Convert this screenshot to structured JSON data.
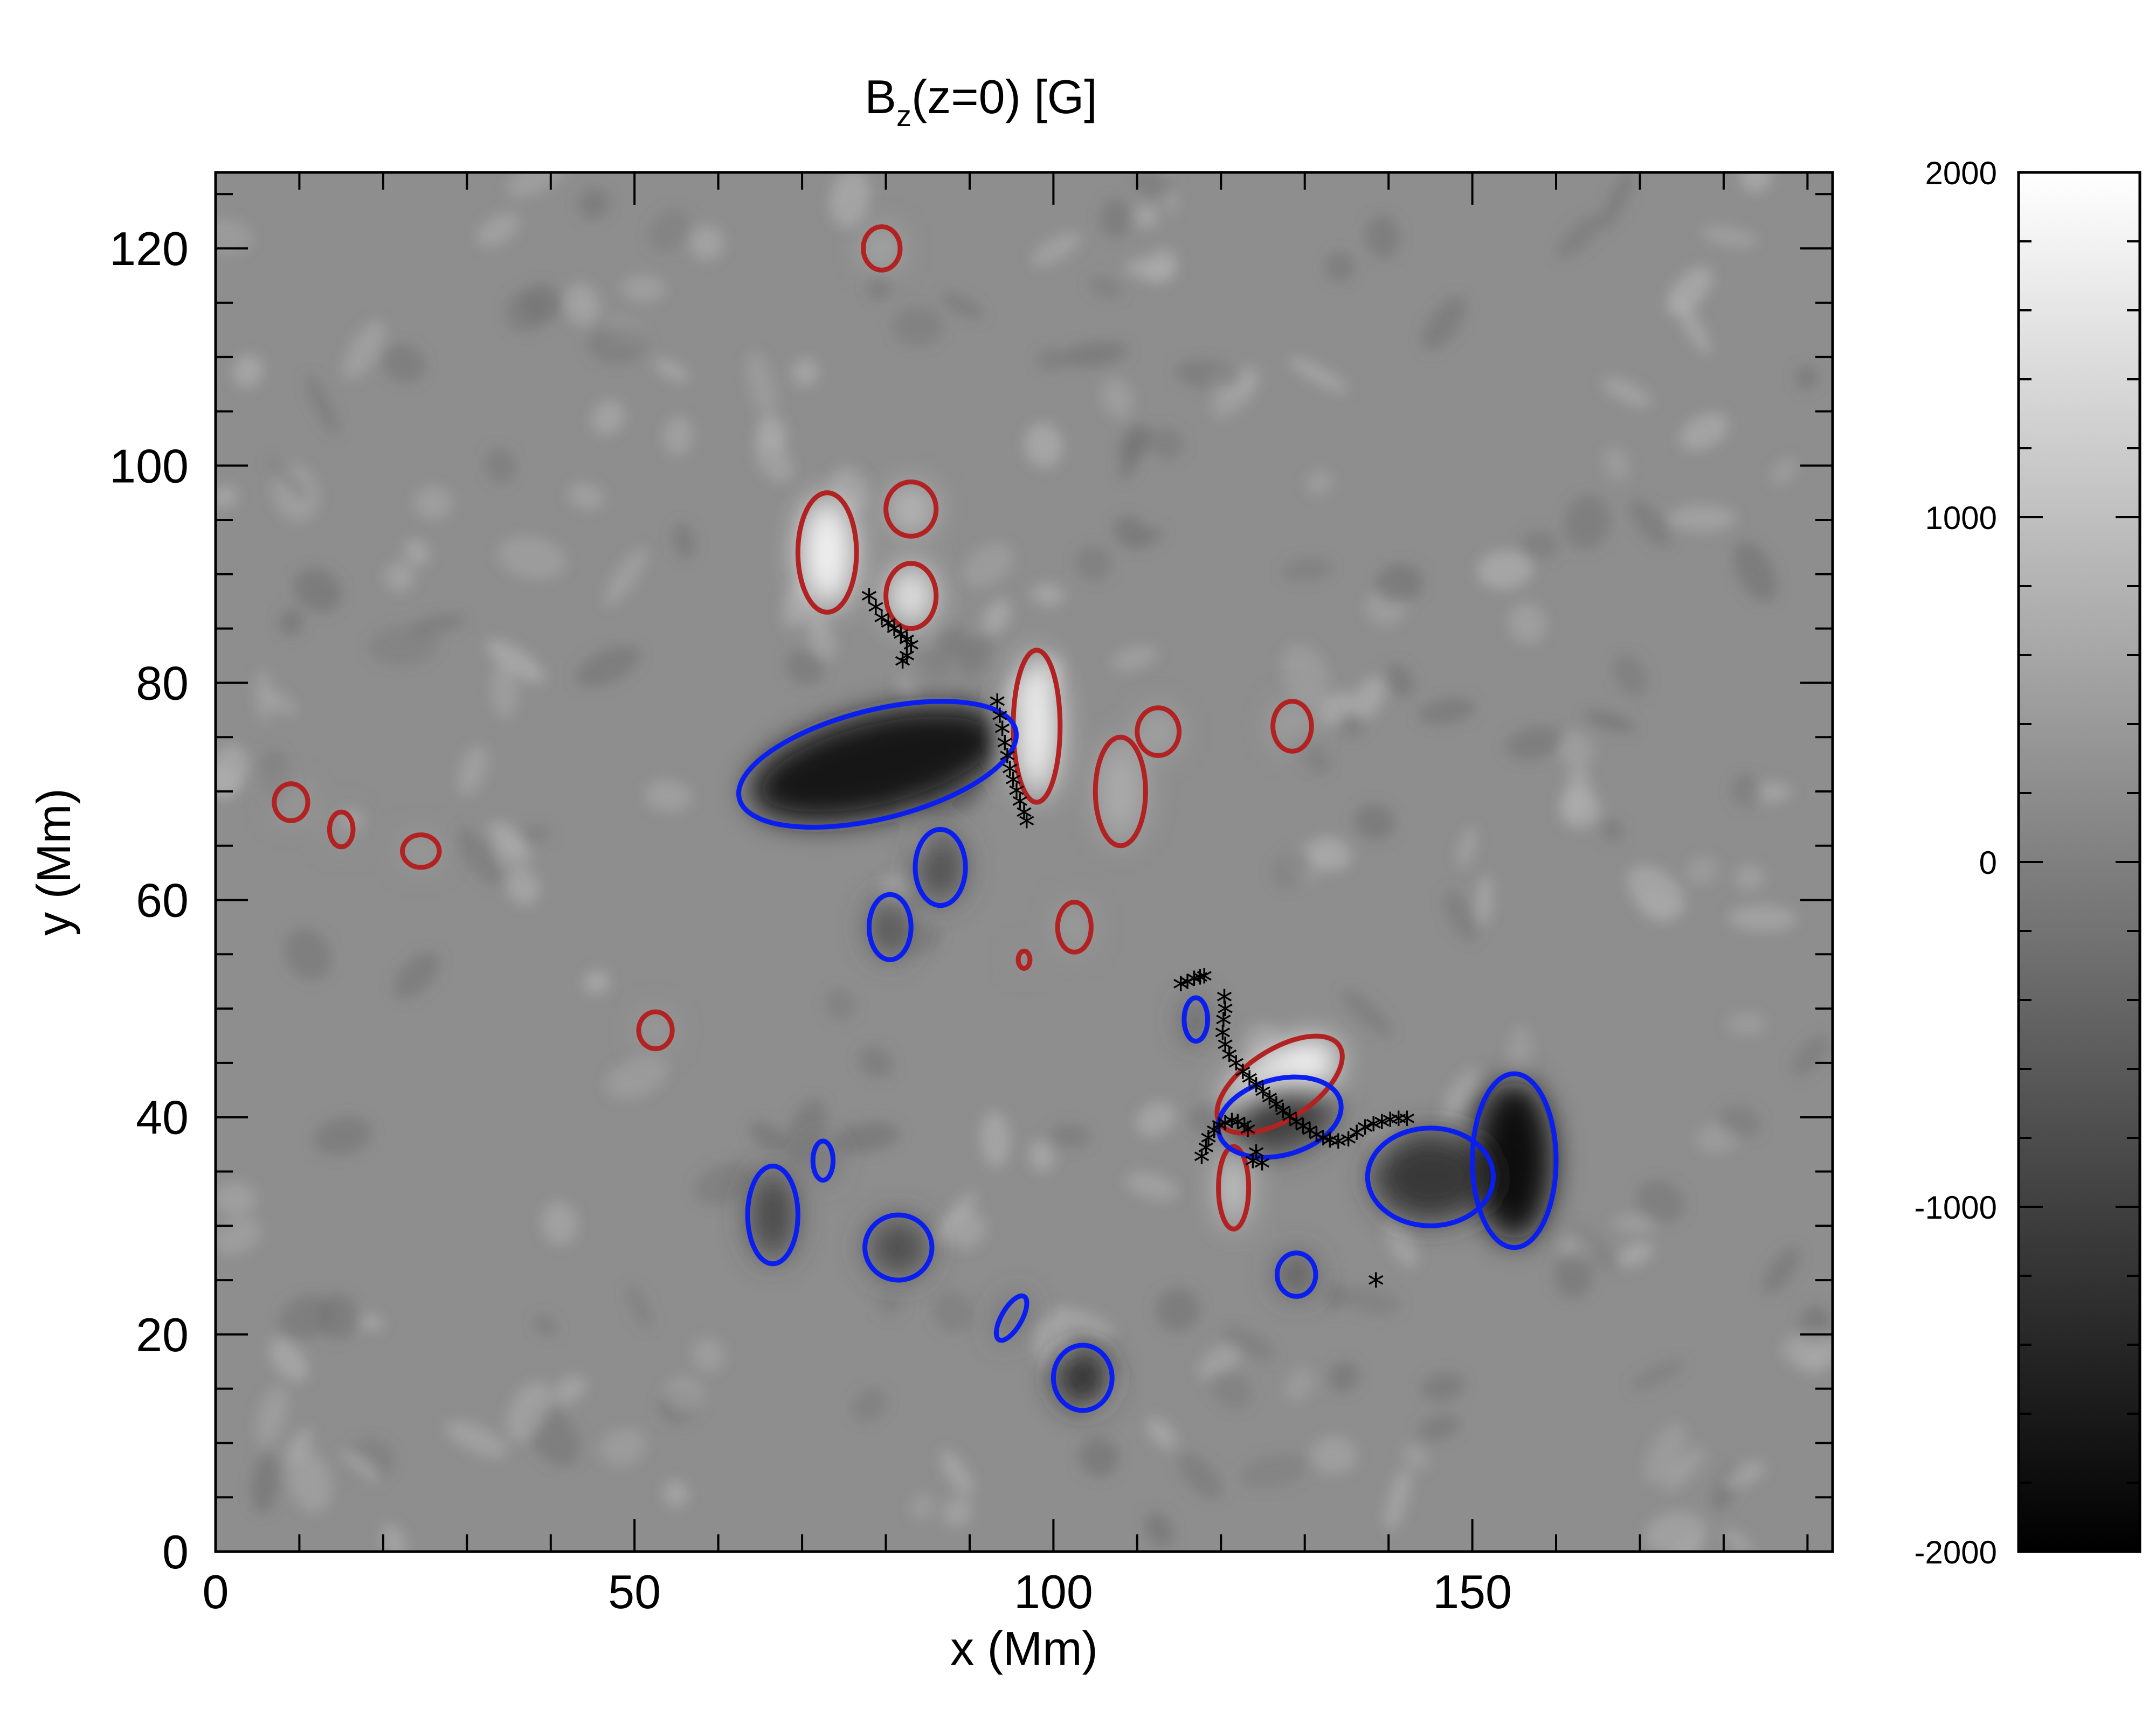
{
  "chart_data": {
    "type": "heatmap",
    "title": {
      "main": "B",
      "sub": "z",
      "rest": "(z=0) [G]"
    },
    "xlabel": "x (Mm)",
    "ylabel": "y (Mm)",
    "xlim": [
      0,
      193
    ],
    "ylim": [
      0,
      127
    ],
    "xticks": [
      0,
      50,
      100,
      150
    ],
    "yticks": [
      0,
      20,
      40,
      60,
      80,
      100,
      120
    ],
    "colorbar": {
      "range": [
        -2000,
        2000
      ],
      "ticks": [
        2000,
        1000,
        0,
        -1000,
        -2000
      ],
      "colormap": "grayscale",
      "low_color": "#000000",
      "high_color": "#ffffff"
    },
    "contours": {
      "positive_color": "#b22222",
      "negative_color": "#0a1ef0"
    },
    "marker_color": "#000000",
    "marker_symbol": "*",
    "regions": [
      {
        "polarity": "positive",
        "center": [
          73,
          92
        ],
        "radius": [
          3.5,
          5.5
        ],
        "peak": 1800
      },
      {
        "polarity": "positive",
        "center": [
          83,
          96
        ],
        "radius": [
          3,
          2.5
        ],
        "peak": 900
      },
      {
        "polarity": "positive",
        "center": [
          83,
          88
        ],
        "radius": [
          3,
          3
        ],
        "peak": 1600
      },
      {
        "polarity": "positive",
        "center": [
          79.5,
          120
        ],
        "radius": [
          2.2,
          2
        ],
        "peak": 700
      },
      {
        "polarity": "positive",
        "center": [
          98,
          76
        ],
        "radius": [
          2.8,
          7
        ],
        "peak": 1800
      },
      {
        "polarity": "positive",
        "center": [
          108,
          70
        ],
        "radius": [
          3,
          5
        ],
        "peak": 700
      },
      {
        "polarity": "positive",
        "center": [
          112.5,
          75.5
        ],
        "radius": [
          2.5,
          2.2
        ],
        "peak": 600
      },
      {
        "polarity": "positive",
        "center": [
          128.5,
          76
        ],
        "radius": [
          2.3,
          2.3
        ],
        "peak": 600
      },
      {
        "polarity": "positive",
        "center": [
          102.5,
          57.5
        ],
        "radius": [
          2,
          2.3
        ],
        "peak": 500
      },
      {
        "polarity": "positive",
        "center": [
          96.5,
          54.5
        ],
        "radius": [
          0.7,
          0.8
        ],
        "peak": 400
      },
      {
        "polarity": "positive",
        "center": [
          127,
          43
        ],
        "radius": [
          8.5,
          3.2
        ],
        "angle": -33,
        "peak": 1900
      },
      {
        "polarity": "positive",
        "center": [
          121.5,
          33.5
        ],
        "radius": [
          1.8,
          3.8
        ],
        "peak": 1200
      },
      {
        "polarity": "positive",
        "center": [
          9,
          69
        ],
        "radius": [
          2,
          1.7
        ],
        "peak": 500
      },
      {
        "polarity": "positive",
        "center": [
          15,
          66.5
        ],
        "radius": [
          1.4,
          1.6
        ],
        "peak": 400
      },
      {
        "polarity": "positive",
        "center": [
          24.5,
          64.5
        ],
        "radius": [
          2.2,
          1.5
        ],
        "peak": 500
      },
      {
        "polarity": "positive",
        "center": [
          52.5,
          48
        ],
        "radius": [
          2,
          1.7
        ],
        "peak": 500
      },
      {
        "polarity": "negative",
        "center": [
          79,
          72.5
        ],
        "radius": [
          17,
          5
        ],
        "angle": -14,
        "peak": -1700
      },
      {
        "polarity": "negative",
        "center": [
          86.5,
          63
        ],
        "radius": [
          3,
          3.5
        ],
        "peak": -800
      },
      {
        "polarity": "negative",
        "center": [
          80.5,
          57.5
        ],
        "radius": [
          2.5,
          3
        ],
        "peak": -700
      },
      {
        "polarity": "negative",
        "center": [
          117,
          49
        ],
        "radius": [
          1.4,
          2
        ],
        "peak": -600
      },
      {
        "polarity": "negative",
        "center": [
          127,
          40
        ],
        "radius": [
          7.5,
          3.5
        ],
        "angle": -15,
        "peak": -1000
      },
      {
        "polarity": "negative",
        "center": [
          155,
          36
        ],
        "radius": [
          5,
          8
        ],
        "peak": -1800
      },
      {
        "polarity": "negative",
        "center": [
          145,
          34.5
        ],
        "radius": [
          7.5,
          4.5
        ],
        "peak": -1100
      },
      {
        "polarity": "negative",
        "center": [
          66.5,
          31
        ],
        "radius": [
          3,
          4.5
        ],
        "peak": -900
      },
      {
        "polarity": "negative",
        "center": [
          72.5,
          36
        ],
        "radius": [
          1.2,
          1.8
        ],
        "peak": -500
      },
      {
        "polarity": "negative",
        "center": [
          81.5,
          28
        ],
        "radius": [
          4,
          3
        ],
        "peak": -800
      },
      {
        "polarity": "negative",
        "center": [
          129,
          25.5
        ],
        "radius": [
          2.3,
          2
        ],
        "peak": -700
      },
      {
        "polarity": "negative",
        "center": [
          95,
          21.5
        ],
        "radius": [
          1.2,
          2.3
        ],
        "angle": 30,
        "peak": -500
      },
      {
        "polarity": "negative",
        "center": [
          103.5,
          16
        ],
        "radius": [
          3.5,
          3
        ],
        "peak": -1300
      }
    ],
    "markers": [
      [
        78,
        87.5
      ],
      [
        78.8,
        86.5
      ],
      [
        79.5,
        85.5
      ],
      [
        80.3,
        85
      ],
      [
        81,
        84.5
      ],
      [
        81.8,
        84
      ],
      [
        82.5,
        83.5
      ],
      [
        83,
        83
      ],
      [
        82.5,
        82
      ],
      [
        82,
        81.5
      ],
      [
        93.3,
        77.8
      ],
      [
        93.6,
        76.5
      ],
      [
        93.9,
        75.3
      ],
      [
        94.2,
        74
      ],
      [
        94.5,
        72.8
      ],
      [
        94.8,
        71.6
      ],
      [
        95.2,
        70.6
      ],
      [
        95.6,
        69.6
      ],
      [
        96,
        68.6
      ],
      [
        96.5,
        67.6
      ],
      [
        96.8,
        66.8
      ],
      [
        115.2,
        51.8
      ],
      [
        116,
        52
      ],
      [
        116.8,
        52.3
      ],
      [
        117.5,
        52.4
      ],
      [
        118,
        52.5
      ],
      [
        120.4,
        50.6
      ],
      [
        120.5,
        49.5
      ],
      [
        120.3,
        48.5
      ],
      [
        120.2,
        47.3
      ],
      [
        120.5,
        46.2
      ],
      [
        121,
        45.3
      ],
      [
        121.8,
        44.5
      ],
      [
        122.6,
        43.7
      ],
      [
        123.4,
        43.1
      ],
      [
        124.2,
        42.5
      ],
      [
        125,
        41.9
      ],
      [
        125.8,
        41.3
      ],
      [
        126.6,
        40.7
      ],
      [
        127.4,
        40.1
      ],
      [
        128.2,
        39.6
      ],
      [
        129,
        39.1
      ],
      [
        129.8,
        38.7
      ],
      [
        130.6,
        38.3
      ],
      [
        131.4,
        37.9
      ],
      [
        132.2,
        37.6
      ],
      [
        133,
        37.4
      ],
      [
        134,
        37.3
      ],
      [
        135.2,
        37.5
      ],
      [
        136.2,
        38.1
      ],
      [
        137.2,
        38.6
      ],
      [
        138.2,
        38.9
      ],
      [
        139.2,
        39.1
      ],
      [
        140.2,
        39.3
      ],
      [
        141.2,
        39.4
      ],
      [
        142.2,
        39.4
      ],
      [
        118.5,
        37.6
      ],
      [
        119.2,
        38.3
      ],
      [
        119.8,
        38.8
      ],
      [
        120.5,
        39
      ],
      [
        121.3,
        39.2
      ],
      [
        122,
        39.1
      ],
      [
        122.8,
        38.8
      ],
      [
        123.2,
        38.4
      ],
      [
        118.2,
        36.7
      ],
      [
        117.7,
        35.9
      ],
      [
        123.8,
        35.5
      ],
      [
        124.2,
        36.3
      ],
      [
        124.9,
        35.3
      ],
      [
        138.5,
        24.5
      ]
    ]
  }
}
